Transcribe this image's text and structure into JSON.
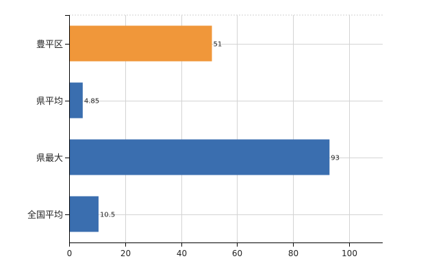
{
  "chart_data": {
    "type": "bar",
    "orientation": "horizontal",
    "categories": [
      "豊平区",
      "県平均",
      "県最大",
      "全国平均"
    ],
    "values": [
      51,
      4.85,
      93,
      10.5
    ],
    "value_labels": [
      "51",
      "4.85",
      "93",
      "10.5"
    ],
    "bar_colors": [
      "#f0973a",
      "#3a6eaf",
      "#3a6eaf",
      "#3a6eaf"
    ],
    "xlim": [
      0,
      112
    ],
    "x_ticks": [
      0,
      20,
      40,
      60,
      80,
      100
    ],
    "grid": true,
    "title": "",
    "xlabel": "",
    "ylabel": ""
  }
}
